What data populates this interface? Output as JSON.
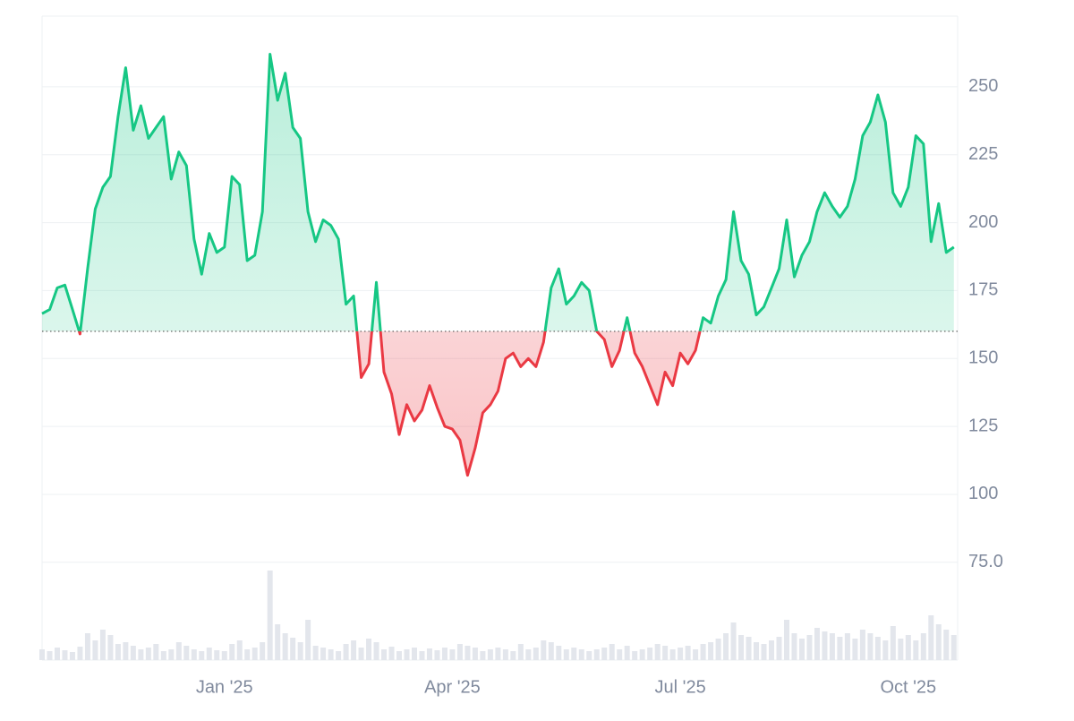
{
  "chart_data": {
    "type": "baseline",
    "x": [
      -2.4,
      -2.3,
      -2.2,
      -2.1,
      -2.0,
      -1.9,
      -1.8,
      -1.7,
      -1.6,
      -1.5,
      -1.4,
      -1.3,
      -1.2,
      -1.1,
      -1.0,
      -0.9,
      -0.8,
      -0.7,
      -0.6,
      -0.5,
      -0.4,
      -0.3,
      -0.2,
      -0.1,
      0,
      0.1,
      0.2,
      0.3,
      0.4,
      0.5,
      0.6,
      0.7,
      0.8,
      0.9,
      1.0,
      1.1,
      1.2,
      1.3,
      1.4,
      1.5,
      1.6,
      1.7,
      1.8,
      1.9,
      2.0,
      2.1,
      2.2,
      2.3,
      2.4,
      2.5,
      2.6,
      2.7,
      2.8,
      2.9,
      3.0,
      3.1,
      3.2,
      3.3,
      3.4,
      3.5,
      3.6,
      3.7,
      3.8,
      3.9,
      4.0,
      4.1,
      4.2,
      4.3,
      4.4,
      4.5,
      4.6,
      4.7,
      4.8,
      4.9,
      5.0,
      5.1,
      5.2,
      5.3,
      5.4,
      5.5,
      5.6,
      5.7,
      5.8,
      5.9,
      6.0,
      6.1,
      6.2,
      6.3,
      6.4,
      6.5,
      6.6,
      6.7,
      6.8,
      6.9,
      7.0,
      7.1,
      7.2,
      7.3,
      7.4,
      7.5,
      7.6,
      7.7,
      7.8,
      7.9,
      8.0,
      8.1,
      8.2,
      8.3,
      8.4,
      8.5,
      8.6,
      8.7,
      8.8,
      8.9,
      9.0,
      9.1,
      9.2,
      9.3,
      9.4,
      9.5,
      9.6
    ],
    "xlim": [
      -2.4,
      9.65
    ],
    "xticks": [
      {
        "value": 0,
        "label": "Jan '25"
      },
      {
        "value": 3,
        "label": "Apr '25"
      },
      {
        "value": 6,
        "label": "Jul '25"
      },
      {
        "value": 9,
        "label": "Oct '25"
      }
    ],
    "ylim": [
      39,
      276
    ],
    "yticks": [
      {
        "value": 75,
        "label": "75.0"
      },
      100,
      125,
      150,
      175,
      200,
      225,
      250
    ],
    "grid": true,
    "baseline": 160,
    "series": [
      {
        "color": "#16c784",
        "color_below": "#ea3943",
        "values": [
          166.5,
          168,
          176,
          177,
          168,
          159,
          183,
          205,
          213,
          217,
          239,
          257,
          234,
          243,
          231,
          235,
          239,
          216,
          226,
          221,
          194,
          181,
          196,
          189,
          191,
          217,
          214,
          186,
          188,
          204,
          262,
          245,
          255,
          235,
          231,
          204,
          193,
          201,
          199,
          194,
          170,
          173,
          143,
          148,
          178,
          145,
          137,
          122,
          133,
          127,
          131,
          140,
          132,
          125,
          124,
          120,
          107,
          117,
          130,
          133,
          138,
          150,
          152,
          147,
          150,
          147,
          156,
          176,
          183,
          170,
          173,
          178,
          175,
          160,
          157,
          147,
          153,
          165,
          152,
          147,
          140,
          133,
          145,
          140,
          152,
          148,
          153,
          165,
          163,
          173,
          179,
          204,
          186,
          181,
          166,
          169,
          176,
          183,
          201,
          180,
          188,
          193,
          204,
          211,
          206,
          202,
          206,
          216,
          232,
          237,
          247,
          237,
          211,
          206,
          213,
          232,
          229,
          193,
          207,
          189,
          191
        ]
      }
    ],
    "volume": {
      "color": "#e3e6ec",
      "lim": [
        0,
        100
      ],
      "values": [
        12,
        10,
        14,
        11,
        9,
        15,
        30,
        22,
        34,
        28,
        18,
        20,
        16,
        12,
        14,
        18,
        10,
        12,
        20,
        16,
        12,
        10,
        14,
        11,
        10,
        18,
        22,
        12,
        14,
        20,
        100,
        40,
        30,
        25,
        20,
        45,
        16,
        14,
        12,
        10,
        18,
        22,
        14,
        24,
        20,
        12,
        15,
        10,
        12,
        14,
        10,
        13,
        11,
        14,
        12,
        18,
        16,
        14,
        10,
        12,
        14,
        12,
        10,
        18,
        12,
        14,
        22,
        20,
        16,
        12,
        14,
        12,
        10,
        12,
        14,
        18,
        12,
        16,
        10,
        12,
        14,
        18,
        16,
        12,
        14,
        16,
        12,
        18,
        20,
        24,
        30,
        42,
        28,
        26,
        20,
        18,
        22,
        26,
        45,
        30,
        24,
        28,
        36,
        32,
        30,
        26,
        30,
        24,
        34,
        30,
        26,
        22,
        38,
        24,
        28,
        22,
        30,
        50,
        40,
        34,
        28
      ]
    }
  }
}
